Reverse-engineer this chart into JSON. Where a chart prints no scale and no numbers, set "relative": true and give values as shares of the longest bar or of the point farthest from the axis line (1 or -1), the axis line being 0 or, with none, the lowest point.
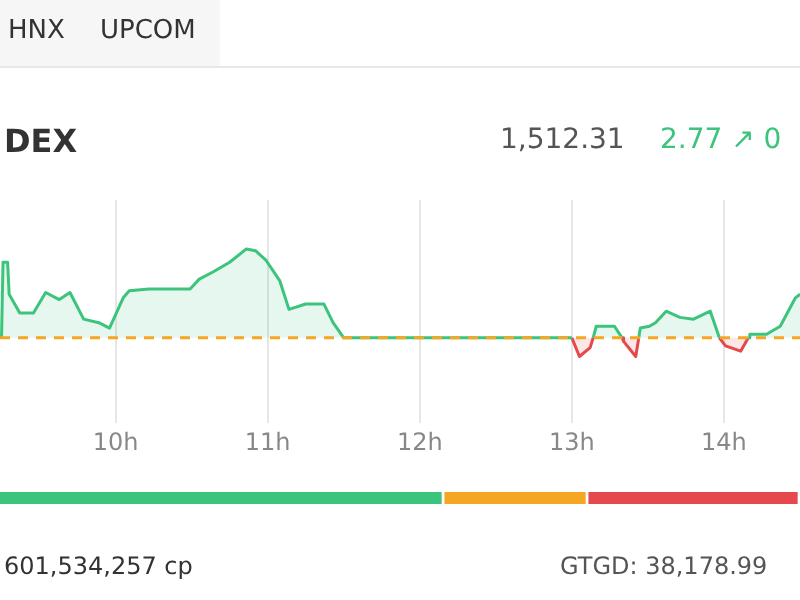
{
  "chart_data": [
    {
      "type": "area",
      "title": "DEX",
      "relative": true,
      "marker": "none",
      "grid": "x",
      "tick_labels": "x",
      "xlim": [
        9.24,
        14.5
      ],
      "xticks": [
        {
          "value": 10,
          "label": "10h"
        },
        {
          "value": 11,
          "label": "11h"
        },
        {
          "value": 12,
          "label": "12h"
        },
        {
          "value": 13,
          "label": "13h"
        },
        {
          "value": 14,
          "label": "14h"
        }
      ],
      "ref_lines": [
        {
          "axis": "y",
          "value": 0,
          "color": "#f5a623",
          "line_style": "dashed"
        }
      ],
      "annotations": [
        "HNX",
        "UPCOM",
        "1,512.31",
        "2.77 ↗ 0",
        "601,534,257 cp",
        "GTGD: 38,178.99"
      ],
      "series": [
        {
          "color": "#3cc47c",
          "x": [
            9.25,
            9.26,
            9.29,
            9.3,
            9.37,
            9.46,
            9.54,
            9.63,
            9.7,
            9.79,
            9.89,
            9.96,
            10.05,
            10.09,
            10.22,
            10.49,
            10.55,
            10.64,
            10.75,
            10.86,
            10.92,
            10.99,
            11.08,
            11.14,
            11.25,
            11.37,
            11.43,
            11.5,
            13.0,
            13.07,
            13.14,
            13.16,
            13.28,
            13.33,
            13.38,
            13.44,
            13.45,
            13.51,
            13.55,
            13.62,
            13.71,
            13.8,
            13.91,
            13.97,
            14.05,
            14.16,
            14.17,
            14.28,
            14.37,
            14.47,
            14.5
          ],
          "values": [
            0,
            0.85,
            0.85,
            0.49,
            0.28,
            0.28,
            0.51,
            0.43,
            0.51,
            0.21,
            0.17,
            0.11,
            0.45,
            0.53,
            0.55,
            0.55,
            0.66,
            0.74,
            0.85,
            1,
            0.98,
            0.87,
            0.64,
            0.32,
            0.38,
            0.38,
            0.17,
            0,
            0,
            null,
            0,
            0.13,
            0.13,
            0,
            null,
            0,
            0.11,
            0.13,
            0.17,
            0.3,
            0.23,
            0.21,
            0.3,
            0,
            null,
            0,
            0.04,
            0.04,
            0.13,
            0.45,
            0.49
          ]
        },
        {
          "color": "#e5484d",
          "x": [
            13.0,
            13.05,
            13.12,
            13.14,
            13.2,
            13.33,
            13.34,
            13.42,
            13.44,
            13.7,
            13.97,
            14.01,
            14.11,
            14.16
          ],
          "values": [
            0,
            -0.21,
            -0.11,
            0,
            null,
            0,
            -0.04,
            -0.21,
            0,
            null,
            0,
            -0.09,
            -0.15,
            0
          ]
        }
      ]
    },
    {
      "type": "bar",
      "orientation": "horizontal",
      "stacked": true,
      "relative": true,
      "categories": [
        null
      ],
      "series": [
        {
          "color": "#3cc47c",
          "values": [
            0.555
          ]
        },
        {
          "color": "#f5a623",
          "values": [
            0.18
          ]
        },
        {
          "color": "#e5484d",
          "values": [
            0.265
          ]
        }
      ]
    }
  ]
}
